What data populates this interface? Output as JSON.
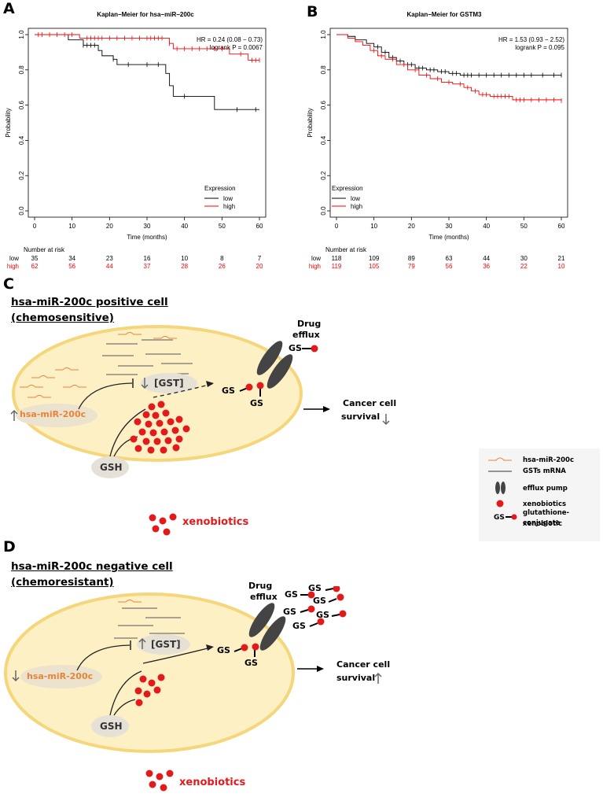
{
  "panel_a": {
    "letter": "A",
    "chart_data": {
      "type": "line",
      "title": "Kaplan−Meier for hsa−miR−200c",
      "xlabel": "Time (months)",
      "ylabel": "Probability",
      "xlim": [
        0,
        60
      ],
      "ylim": [
        0,
        1.0
      ],
      "x_ticks": [
        "0",
        "10",
        "20",
        "30",
        "40",
        "50",
        "60"
      ],
      "y_ticks": [
        "0.0",
        "0.2",
        "0.4",
        "0.6",
        "0.8",
        "1.0"
      ],
      "annotation": [
        "HR = 0.24 (0.08 − 0.73)",
        "logrank P = 0.0067"
      ],
      "legend_title": "Expression",
      "legend_position": "bottom-right",
      "series": [
        {
          "name": "low",
          "color": "#000000",
          "steps": [
            [
              0,
              1.0
            ],
            [
              9,
              0.97
            ],
            [
              13,
              0.94
            ],
            [
              17,
              0.91
            ],
            [
              18,
              0.88
            ],
            [
              21,
              0.86
            ],
            [
              22,
              0.83
            ],
            [
              35,
              0.78
            ],
            [
              36,
              0.71
            ],
            [
              37,
              0.65
            ],
            [
              48,
              0.575
            ],
            [
              60,
              0.575
            ]
          ],
          "censor": [
            13,
            14,
            15,
            16,
            21,
            25,
            30,
            33,
            40,
            54,
            59
          ]
        },
        {
          "name": "high",
          "color": "#ff0000",
          "steps": [
            [
              0,
              1.0
            ],
            [
              12,
              0.98
            ],
            [
              36,
              0.95
            ],
            [
              37,
              0.92
            ],
            [
              52,
              0.89
            ],
            [
              57,
              0.855
            ],
            [
              60,
              0.855
            ]
          ],
          "censor": [
            1,
            2,
            4,
            6,
            8,
            10,
            14,
            15,
            16,
            17,
            18,
            20,
            22,
            24,
            26,
            28,
            30,
            31,
            32,
            33,
            34,
            36,
            38,
            40,
            42,
            44,
            46,
            48,
            50,
            55,
            58,
            59,
            60
          ]
        }
      ]
    },
    "risk": {
      "header": "Number at risk",
      "rows": [
        {
          "label": "low",
          "color": "#000000",
          "values": [
            "35",
            "34",
            "23",
            "16",
            "10",
            "8",
            "7"
          ]
        },
        {
          "label": "high",
          "color": "#ff0000",
          "values": [
            "62",
            "56",
            "44",
            "37",
            "28",
            "26",
            "20"
          ]
        }
      ]
    }
  },
  "panel_b": {
    "letter": "B",
    "chart_data": {
      "type": "line",
      "title": "Kaplan−Meier for GSTM3",
      "xlabel": "Time (months)",
      "ylabel": "Probability",
      "xlim": [
        0,
        60
      ],
      "ylim": [
        0,
        1.0
      ],
      "x_ticks": [
        "0",
        "10",
        "20",
        "30",
        "40",
        "50",
        "60"
      ],
      "y_ticks": [
        "0.0",
        "0.2",
        "0.4",
        "0.6",
        "0.8",
        "1.0"
      ],
      "annotation": [
        "HR = 1.53 (0.93 − 2.52)",
        "logrank P = 0.095"
      ],
      "legend_title": "Expression",
      "legend_position": "bottom-left",
      "series": [
        {
          "name": "low",
          "color": "#000000",
          "steps": [
            [
              0,
              1.0
            ],
            [
              3,
              0.99
            ],
            [
              5,
              0.97
            ],
            [
              8,
              0.95
            ],
            [
              10,
              0.93
            ],
            [
              12,
              0.9
            ],
            [
              14,
              0.87
            ],
            [
              16,
              0.85
            ],
            [
              18,
              0.83
            ],
            [
              21,
              0.81
            ],
            [
              24,
              0.8
            ],
            [
              27,
              0.79
            ],
            [
              30,
              0.78
            ],
            [
              33,
              0.77
            ],
            [
              60,
              0.77
            ]
          ],
          "censor": [
            11,
            13,
            15,
            17,
            19,
            20,
            22,
            23,
            25,
            26,
            28,
            29,
            31,
            32,
            34,
            35,
            36,
            38,
            40,
            42,
            44,
            46,
            48,
            50,
            52,
            55,
            58,
            60
          ]
        },
        {
          "name": "high",
          "color": "#ff0000",
          "steps": [
            [
              0,
              1.0
            ],
            [
              3,
              0.98
            ],
            [
              5,
              0.96
            ],
            [
              7,
              0.94
            ],
            [
              9,
              0.91
            ],
            [
              11,
              0.88
            ],
            [
              13,
              0.86
            ],
            [
              16,
              0.83
            ],
            [
              19,
              0.8
            ],
            [
              22,
              0.77
            ],
            [
              25,
              0.75
            ],
            [
              28,
              0.73
            ],
            [
              31,
              0.72
            ],
            [
              34,
              0.7
            ],
            [
              36,
              0.68
            ],
            [
              38,
              0.66
            ],
            [
              41,
              0.65
            ],
            [
              47,
              0.63
            ],
            [
              60,
              0.625
            ]
          ],
          "censor": [
            10,
            12,
            15,
            18,
            21,
            24,
            27,
            30,
            33,
            35,
            37,
            39,
            40,
            42,
            43,
            44,
            45,
            46,
            48,
            49,
            50,
            52,
            54,
            56,
            58,
            60
          ]
        }
      ]
    },
    "risk": {
      "header": "Number at risk",
      "rows": [
        {
          "label": "low",
          "color": "#000000",
          "values": [
            "118",
            "109",
            "89",
            "63",
            "44",
            "30",
            "21"
          ]
        },
        {
          "label": "high",
          "color": "#ff0000",
          "values": [
            "119",
            "105",
            "79",
            "56",
            "36",
            "22",
            "10"
          ]
        }
      ]
    }
  },
  "panel_c": {
    "letter": "C",
    "title_line1": "hsa-miR-200c positive cell",
    "title_line2": "(chemosensitive)",
    "gst_label": "[GST]",
    "mirna_label": "hsa-miR-200c",
    "gsh_label": "GSH",
    "gs_label": "GS",
    "drug_efflux_line1": "Drug",
    "drug_efflux_line2": "efflux",
    "survival_line1": "Cancer cell",
    "survival_line2": "survival",
    "xenobiotics_label": "xenobiotics"
  },
  "panel_d": {
    "letter": "D",
    "title_line1": "hsa-miR-200c negative cell",
    "title_line2": "(chemoresistant)",
    "gst_label": "[GST]",
    "mirna_label": "hsa-miR-200c",
    "gsh_label": "GSH",
    "gs_label": "GS",
    "drug_efflux_line1": "Drug",
    "drug_efflux_line2": "efflux",
    "survival_line1": "Cancer cell",
    "survival_line2": "survival",
    "xenobiotics_label": "xenobiotics"
  },
  "legend": {
    "mirna": "hsa-miR-200c",
    "mrna": "GSTs mRNA",
    "pump": "efflux pump",
    "xeno": "xenobiotics",
    "conj_line1": "glutathione-xenobiotic",
    "conj_line2": "conjugate",
    "gs_label": "GS"
  },
  "colors": {
    "red": "#e31a1c",
    "cell_fill": "#fdf0c4",
    "cell_border": "#f5d67a",
    "orange": "#e8843a",
    "pump": "#444444",
    "arrow_gray": "#666666"
  }
}
